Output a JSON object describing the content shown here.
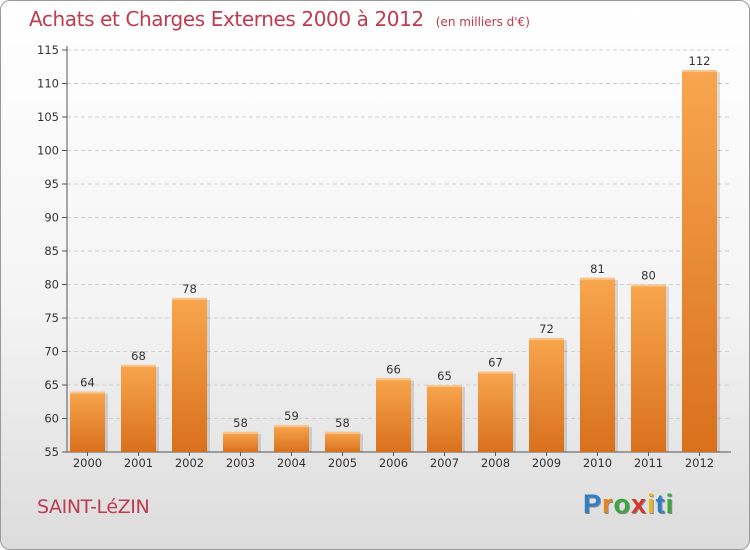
{
  "title": "Achats et Charges Externes 2000 à 2012",
  "unit_label": "(en milliers d'€)",
  "commune": "SAINT-LéZIN",
  "logo": {
    "letters": [
      "P",
      "r",
      "o",
      "x",
      "i",
      "t",
      "i"
    ],
    "colors": [
      "#2f7fc8",
      "#e8841c",
      "#3aa83a",
      "#d9342a",
      "#e8b81c",
      "#2f7fc8",
      "#3aa83a"
    ]
  },
  "colors": {
    "bar_light": "#f8a64e",
    "bar_dark": "#d9701c",
    "title": "#c03a50",
    "grid": "#cfcfcf",
    "axis_text": "#333333"
  },
  "chart_data": {
    "type": "bar",
    "categories": [
      "2000",
      "2001",
      "2002",
      "2003",
      "2004",
      "2005",
      "2006",
      "2007",
      "2008",
      "2009",
      "2010",
      "2011",
      "2012"
    ],
    "values": [
      64,
      68,
      78,
      58,
      59,
      58,
      66,
      65,
      67,
      72,
      81,
      80,
      112
    ],
    "ylim": [
      55,
      115
    ],
    "yticks": [
      55,
      60,
      65,
      70,
      75,
      80,
      85,
      90,
      95,
      100,
      105,
      110,
      115
    ],
    "grid": true,
    "data_labels": true
  }
}
